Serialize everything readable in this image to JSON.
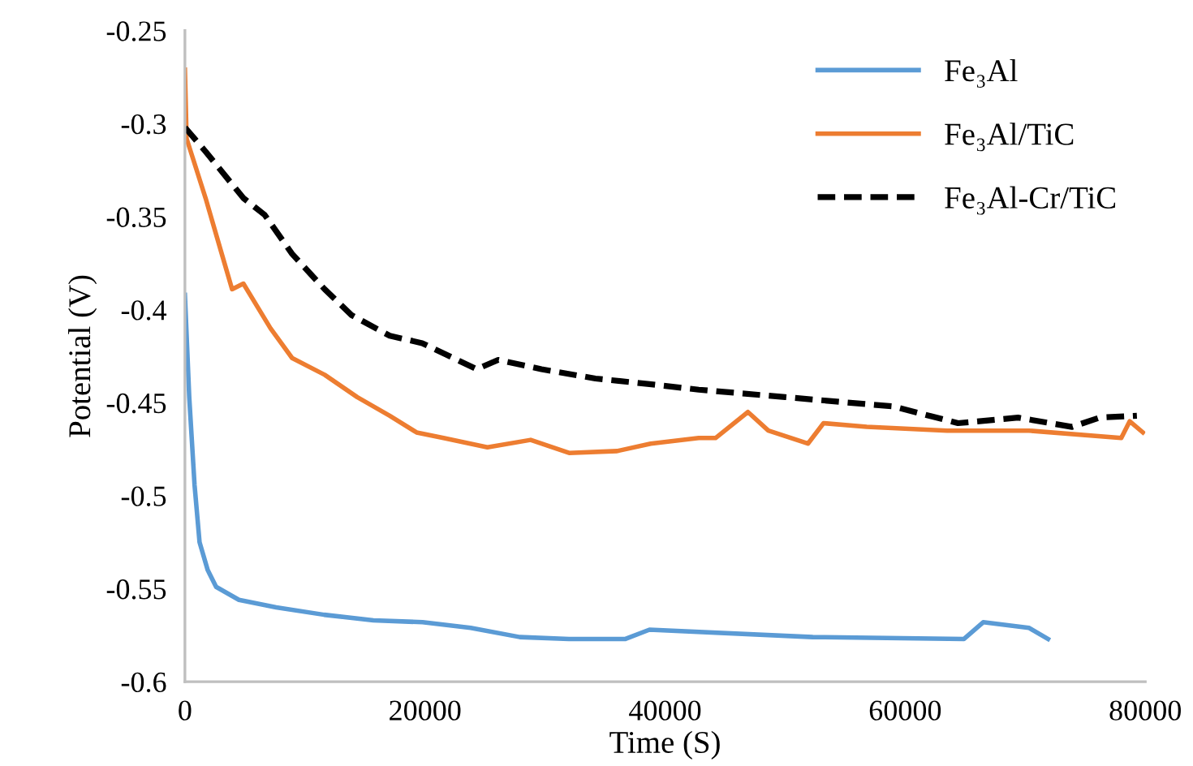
{
  "chart_data": {
    "type": "line",
    "xlabel": "Time (S)",
    "ylabel": "Potential (V)",
    "xlim": [
      0,
      80000
    ],
    "xticks": [
      0,
      20000,
      40000,
      60000,
      80000
    ],
    "ylim": [
      -0.6,
      -0.25
    ],
    "yticks": [
      -0.6,
      -0.55,
      -0.5,
      -0.45,
      -0.4,
      -0.35,
      -0.3,
      -0.25
    ],
    "grid": false,
    "legend": "top right",
    "series": [
      {
        "name": "Fe₃Al",
        "color": "#5b9bd5",
        "line_style": "solid",
        "x": [
          0,
          360,
          800,
          1220,
          1900,
          2600,
          4500,
          7600,
          11600,
          15700,
          19800,
          23800,
          27900,
          32000,
          36700,
          38700,
          52300,
          64900,
          66500,
          70300,
          71900
        ],
        "values": [
          -0.392,
          -0.447,
          -0.494,
          -0.525,
          -0.54,
          -0.549,
          -0.556,
          -0.56,
          -0.564,
          -0.567,
          -0.568,
          -0.571,
          -0.576,
          -0.577,
          -0.577,
          -0.572,
          -0.576,
          -0.577,
          -0.568,
          -0.571,
          -0.577
        ]
      },
      {
        "name": "Fe₃Al/TiC",
        "color": "#ed7d31",
        "line_style": "solid",
        "x": [
          0,
          140,
          1720,
          3070,
          3930,
          4870,
          7130,
          8930,
          11640,
          14350,
          17060,
          19300,
          21540,
          25200,
          28800,
          32000,
          36000,
          38800,
          42800,
          44200,
          46900,
          48600,
          51900,
          53200,
          56800,
          63500,
          70300,
          78000,
          78700,
          79800
        ],
        "values": [
          -0.271,
          -0.308,
          -0.34,
          -0.37,
          -0.389,
          -0.386,
          -0.41,
          -0.426,
          -0.435,
          -0.447,
          -0.457,
          -0.466,
          -0.469,
          -0.474,
          -0.47,
          -0.477,
          -0.476,
          -0.472,
          -0.469,
          -0.469,
          -0.455,
          -0.465,
          -0.472,
          -0.461,
          -0.463,
          -0.465,
          -0.465,
          -0.469,
          -0.46,
          -0.466
        ]
      },
      {
        "name": "Fe₃Al-Cr/TiC",
        "color": "#000000",
        "line_style": "dashed",
        "x": [
          0,
          1720,
          4870,
          6640,
          8930,
          11640,
          13900,
          17060,
          19770,
          24300,
          26100,
          29700,
          34200,
          38700,
          42800,
          50000,
          59000,
          64400,
          69400,
          73900,
          76200,
          79300
        ],
        "values": [
          -0.302,
          -0.315,
          -0.34,
          -0.349,
          -0.37,
          -0.389,
          -0.403,
          -0.414,
          -0.418,
          -0.432,
          -0.427,
          -0.432,
          -0.437,
          -0.44,
          -0.443,
          -0.447,
          -0.452,
          -0.461,
          -0.458,
          -0.463,
          -0.458,
          -0.457
        ]
      }
    ]
  }
}
